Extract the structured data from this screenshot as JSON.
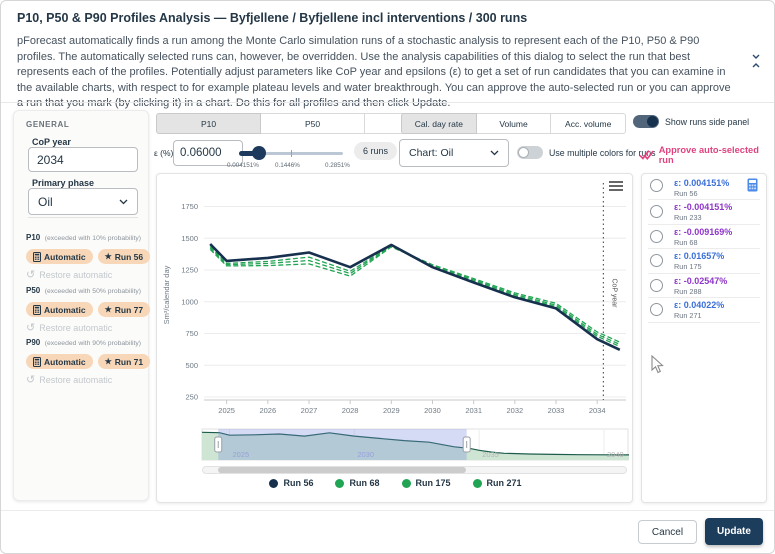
{
  "header": {
    "title": "P10, P50 & P90 Profiles Analysis — Byfjellene / Byfjellene incl interventions / 300 runs",
    "description": "pForecast automatically finds a run among the Monte Carlo simulation runs of a stochastic analysis to represent each of the P10, P50 & P90 profiles. The automatically selected runs can, however, be overridden. Use the analysis capabilities of this dialog to select the run that best represents each of the profiles. Potentially adjust parameters like CoP year and epsilons (ε) to get a set of run candidates that you can examine in the available charts, with respect to for example plateau levels and water breakthrough. You can approve the auto-selected run or you can approve a run that you mark (by clicking it) in a chart. Do this for all profiles and then click Update."
  },
  "general_panel": {
    "heading": "GENERAL",
    "cop_year_label": "CoP year",
    "cop_year_value": "2034",
    "primary_phase_label": "Primary phase",
    "primary_phase_value": "Oil",
    "profiles": [
      {
        "name": "P10",
        "note": "(exceeded with 10% probability)",
        "auto_label": "Automatic",
        "run_label": "Run 56",
        "restore_label": "Restore automatic"
      },
      {
        "name": "P50",
        "note": "(exceeded with 50% probability)",
        "auto_label": "Automatic",
        "run_label": "Run 77",
        "restore_label": "Restore automatic"
      },
      {
        "name": "P90",
        "note": "(exceeded with 90% probability)",
        "auto_label": "Automatic",
        "run_label": "Run 71",
        "restore_label": "Restore automatic"
      }
    ]
  },
  "toolbar": {
    "profile_tabs": [
      "P10",
      "P50",
      "P90"
    ],
    "profile_tab_selected": "P10",
    "chart_tabs": [
      "Cal. day rate",
      "Volume",
      "Acc. volume"
    ],
    "chart_tab_selected": "Cal. day rate",
    "epsilon_label": "ε (%)",
    "epsilon_value": "0.06000",
    "slider_min_label": "0.004151%",
    "slider_mid_label": "0.1446%",
    "slider_max_label": "0.2851%",
    "runs_badge": "6 runs",
    "chart_select_value": "Chart: Oil",
    "show_runs_toggle_label": "Show runs side panel",
    "multi_colors_toggle_label": "Use multiple colors for runs",
    "approve_label": "Approve auto-selected run"
  },
  "chart_data": [
    {
      "id": "main",
      "type": "line",
      "ylabel": "Sm³/calendar day",
      "ylim": [
        250,
        1880
      ],
      "yticks": [
        250,
        500,
        750,
        1000,
        1250,
        1500,
        1750
      ],
      "xlim": [
        2024.45,
        2034.7
      ],
      "xticks": [
        2025,
        2026,
        2027,
        2028,
        2029,
        2030,
        2031,
        2032,
        2033,
        2034
      ],
      "x": [
        2024.6,
        2025,
        2026,
        2027,
        2028,
        2029,
        2030,
        2031,
        2032,
        2033,
        2034,
        2034.55
      ],
      "series": [
        {
          "name": "Run 56",
          "color": "#16304e",
          "dash": "solid",
          "values": [
            1455,
            1322,
            1345,
            1388,
            1272,
            1448,
            1272,
            1152,
            1035,
            948,
            705,
            622
          ]
        },
        {
          "name": "Run 68",
          "color": "#21a453",
          "dash": "dashed",
          "values": [
            1435,
            1302,
            1318,
            1352,
            1240,
            1442,
            1280,
            1163,
            1048,
            962,
            728,
            648
          ]
        },
        {
          "name": "Run 175",
          "color": "#21a453",
          "dash": "dashed",
          "values": [
            1425,
            1292,
            1302,
            1325,
            1222,
            1438,
            1286,
            1172,
            1058,
            974,
            744,
            664
          ]
        },
        {
          "name": "Run 271",
          "color": "#21a453",
          "dash": "dashed",
          "values": [
            1412,
            1282,
            1285,
            1298,
            1202,
            1432,
            1292,
            1182,
            1070,
            988,
            762,
            682
          ]
        }
      ],
      "annotation": {
        "label": "CoP year",
        "x": 2034.15,
        "style": "dotted-vertical"
      },
      "grid": true,
      "legend_position": "bottom"
    },
    {
      "id": "navigator",
      "type": "area",
      "xlim": [
        2023.9,
        2041
      ],
      "xticks": [
        2025,
        2030,
        2035,
        2040
      ],
      "ylim": [
        0,
        1600
      ],
      "x": [
        2023.9,
        2024.6,
        2025,
        2026,
        2027,
        2028,
        2029,
        2030,
        2031,
        2032,
        2033,
        2034,
        2034.6,
        2035,
        2035.5,
        2036,
        2037,
        2038,
        2039,
        2040,
        2041
      ],
      "values": [
        1480,
        1455,
        1322,
        1345,
        1388,
        1272,
        1448,
        1272,
        1152,
        1035,
        948,
        705,
        622,
        520,
        420,
        360,
        320,
        300,
        285,
        275,
        270
      ],
      "selection": [
        2024.55,
        2034.5
      ],
      "line_color": "#1d5c4d",
      "fill_color": "#cfe5d4",
      "selection_color": "rgba(116,136,218,0.30)"
    }
  ],
  "side_panel": {
    "runs": [
      {
        "epsilon": "ε: 0.004151%",
        "run": "Run 56",
        "sign": "pos",
        "has_calculator_icon": true
      },
      {
        "epsilon": "ε: -0.004151%",
        "run": "Run 233",
        "sign": "neg",
        "has_calculator_icon": false
      },
      {
        "epsilon": "ε: -0.009169%",
        "run": "Run 68",
        "sign": "neg",
        "has_calculator_icon": false
      },
      {
        "epsilon": "ε: 0.01657%",
        "run": "Run 175",
        "sign": "pos",
        "has_calculator_icon": false
      },
      {
        "epsilon": "ε: -0.02547%",
        "run": "Run 288",
        "sign": "neg",
        "has_calculator_icon": false
      },
      {
        "epsilon": "ε: 0.04022%",
        "run": "Run 271",
        "sign": "pos",
        "has_calculator_icon": false
      }
    ]
  },
  "footer": {
    "cancel_label": "Cancel",
    "update_label": "Update"
  },
  "colors": {
    "navy": "#243746",
    "navy_line": "#16304e",
    "green_line": "#21a453",
    "pink": "#e0437f",
    "blue_epsilon": "#3a6fd8",
    "purple_epsilon": "#8f35c9",
    "chip_bg": "#f7d7b8",
    "update_button": "#1d3d5d"
  }
}
